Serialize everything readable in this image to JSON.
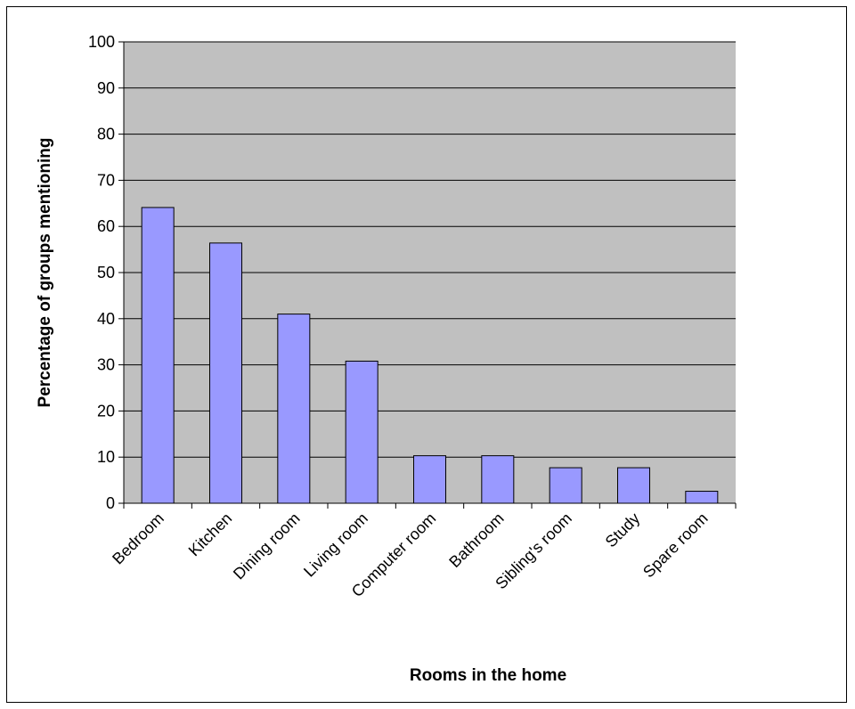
{
  "chart_data": {
    "type": "bar",
    "title": "",
    "xlabel": "Rooms in the home",
    "ylabel": "Percentage of groups mentioning",
    "categories": [
      "Bedroom",
      "Kitchen",
      "Dining room",
      "Living room",
      "Computer room",
      "Bathroom",
      "Sibling's room",
      "Study",
      "Spare room"
    ],
    "values": [
      64.1,
      56.4,
      41.0,
      30.8,
      10.3,
      10.3,
      7.7,
      7.7,
      2.6
    ],
    "ylim": [
      0,
      100
    ],
    "yticks": [
      0,
      10,
      20,
      30,
      40,
      50,
      60,
      70,
      80,
      90,
      100
    ],
    "grid": true,
    "legend": "none",
    "colors": {
      "bar_fill": "#9999ff",
      "bar_stroke": "#000000",
      "plot_background": "#c0c0c0",
      "gridline": "#000000"
    }
  }
}
